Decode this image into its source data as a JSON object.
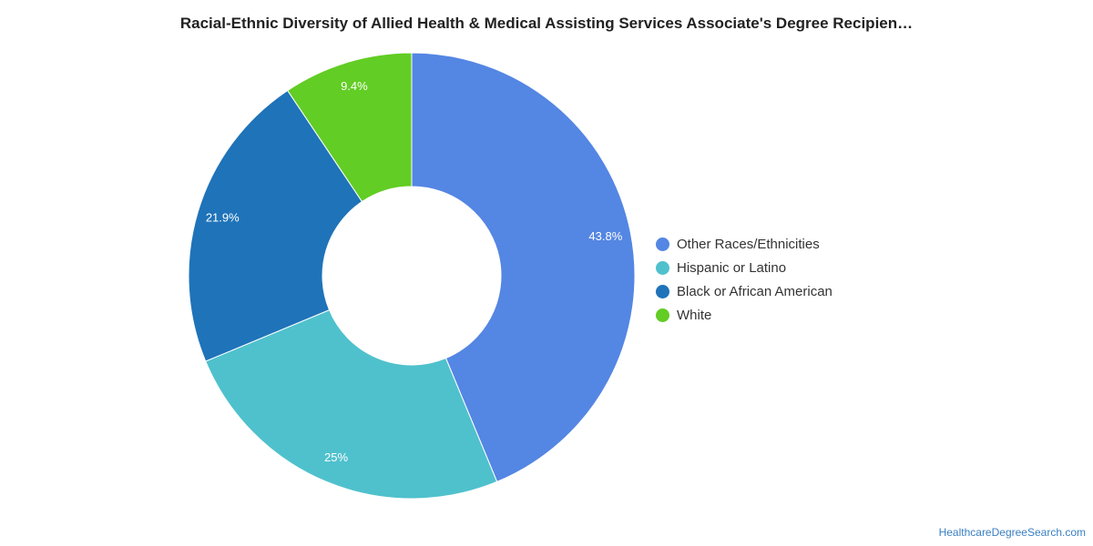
{
  "chart_data": {
    "type": "pie",
    "donut": true,
    "title": "Racial-Ethnic Diversity of Allied Health & Medical Assisting Services Associate's Degree Recipien…",
    "categories": [
      "Other Races/Ethnicities",
      "Hispanic or Latino",
      "Black or African American",
      "White"
    ],
    "values": [
      43.8,
      25,
      21.9,
      9.4
    ],
    "value_labels": [
      "43.8%",
      "25%",
      "21.9%",
      "9.4%"
    ],
    "colors": [
      "#5486e3",
      "#4fc1cd",
      "#1f73b9",
      "#62cd24"
    ],
    "legend_position": "right"
  },
  "source_label": "HealthcareDegreeSearch.com"
}
